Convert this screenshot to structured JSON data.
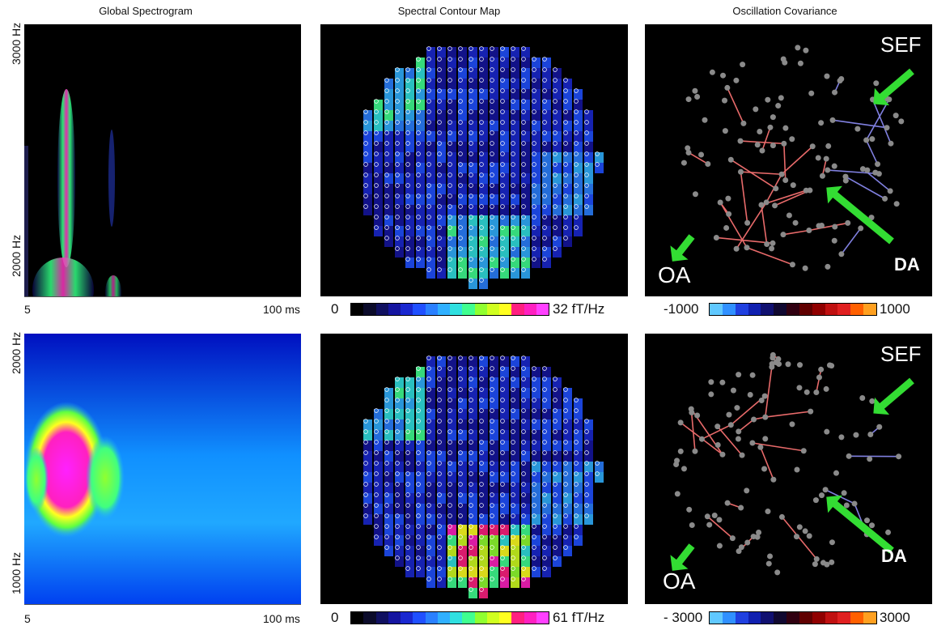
{
  "titles": {
    "col1": "Global Spectrogram",
    "col2": "Spectral Contour Map",
    "col3": "Oscillation Covariance"
  },
  "top": {
    "spectrogram": {
      "y_top": "3000 Hz",
      "y_bottom": "2000 Hz",
      "x_left": "5",
      "x_right": "100 ms"
    },
    "contour_bar": {
      "min": "0",
      "max": "32 fT/Hz"
    },
    "covariance_bar": {
      "min": "-1000",
      "max": "1000"
    }
  },
  "bottom": {
    "spectrogram": {
      "y_top": "2000 Hz",
      "y_bottom": "1000 Hz",
      "x_left": "5",
      "x_right": "100 ms"
    },
    "contour_bar": {
      "min": "0",
      "max": "61 fT/Hz"
    },
    "covariance_bar": {
      "min": "- 3000",
      "max": "3000"
    }
  },
  "annotations": {
    "sef": "SEF",
    "da": "DA",
    "oa": "OA"
  },
  "colors": {
    "contour_scale": [
      "#000000",
      "#0b0b2a",
      "#101060",
      "#1515a0",
      "#1a28d0",
      "#2050ff",
      "#2a80ff",
      "#30b0ff",
      "#30e0e0",
      "#40ff90",
      "#90ff30",
      "#d0ff20",
      "#ffff20",
      "#ff2080",
      "#ff20c0",
      "#ff40ff"
    ],
    "covariance_scale": [
      "#60c8ff",
      "#3090ff",
      "#2040e0",
      "#1020b0",
      "#101070",
      "#100830",
      "#300010",
      "#600000",
      "#900000",
      "#c01010",
      "#e02020",
      "#ff6000",
      "#ffa020"
    ],
    "arrow": "#33dd33",
    "edge_pink": "#e86a6a",
    "edge_blue": "#8080e0"
  }
}
